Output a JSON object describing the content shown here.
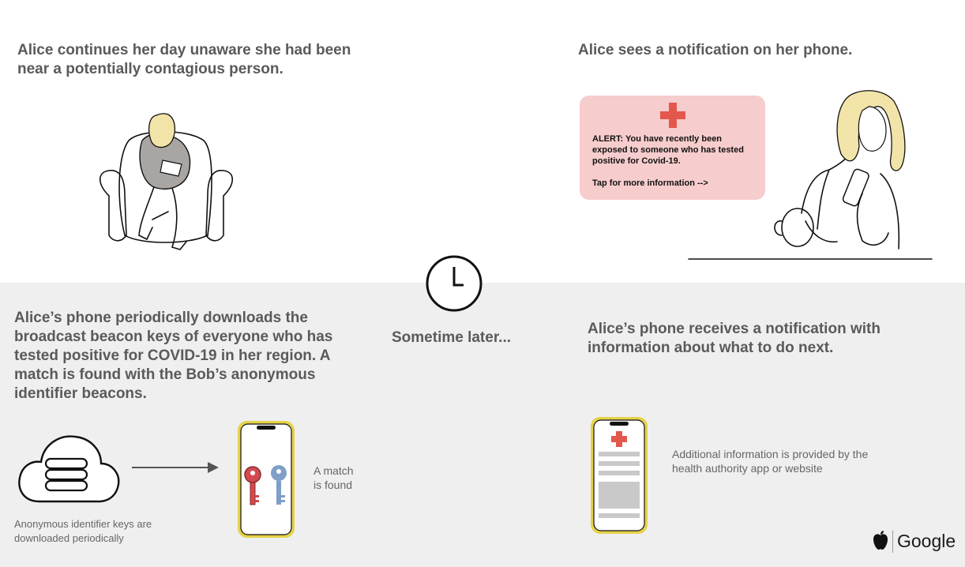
{
  "panel_top_left": {
    "text": "Alice continues her day unaware she had been near a potentially contagious person."
  },
  "panel_top_right": {
    "text": "Alice sees a notification on her phone."
  },
  "alert": {
    "line1": "ALERT:  You have recently been",
    "line2": "exposed to someone who has tested",
    "line3": "positive for Covid-19.",
    "line4": "Tap for more information -->"
  },
  "center": {
    "text": "Sometime later..."
  },
  "panel_bottom_left": {
    "text": "Alice’s phone periodically downloads the broadcast beacon keys of everyone who has tested positive for COVID-19 in her region. A match is found with the Bob’s anonymous identifier beacons.",
    "caption_line1": "Anonymous identifier keys are",
    "caption_line2": "downloaded periodically",
    "match_line1": "A match",
    "match_line2": "is found"
  },
  "panel_bottom_right": {
    "text": "Alice’s phone receives a notification with information about what to do next.",
    "caption_line1": "Additional information is provided by the",
    "caption_line2": "health authority app or website"
  },
  "logos": {
    "apple_icon": "apple-icon",
    "google": "Google"
  },
  "colors": {
    "band": "#efefef",
    "alert_bg": "#f6cccc",
    "red": "#e4574c",
    "phone_yellow": "#e5d24a",
    "key_blue": "#7f9fc8",
    "key_red": "#d24a4f"
  }
}
